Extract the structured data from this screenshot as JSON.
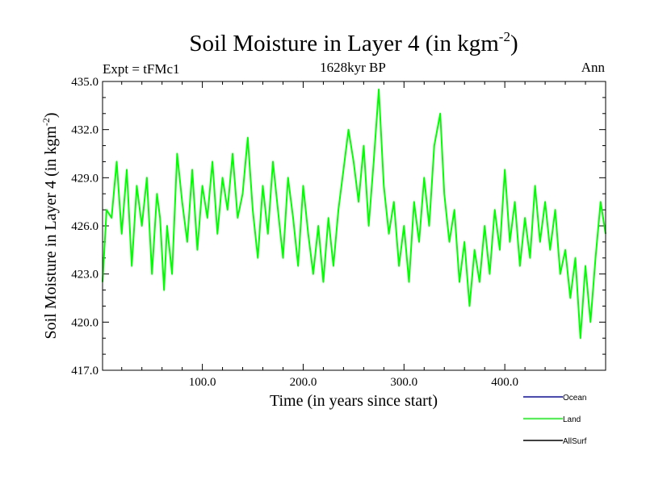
{
  "chart_data": {
    "type": "line",
    "title": "Soil Moisture in Layer 4 (in kgm",
    "title_exponent": "-2",
    "title_close": ")",
    "subtitle": "1628kyr BP",
    "left_label": "Expt = tFMc1",
    "right_label": "Ann",
    "xlabel": "Time (in years since start)",
    "ylabel": "Soil Moisture in Layer 4 (in kgm",
    "ylabel_exponent": "-2",
    "ylabel_close": ")",
    "xlim": [
      1,
      500
    ],
    "ylim": [
      417.0,
      435.0
    ],
    "x_ticks": [
      100,
      200,
      300,
      400
    ],
    "x_tick_labels": [
      "100.0",
      "200.0",
      "300.0",
      "400.0"
    ],
    "y_ticks": [
      417,
      420,
      423,
      426,
      429,
      432,
      435
    ],
    "y_tick_labels": [
      "417.0",
      "420.0",
      "423.0",
      "426.0",
      "429.0",
      "432.0",
      "435.0"
    ],
    "legend": [
      {
        "name": "Ocean",
        "color": "#0000ff"
      },
      {
        "name": "Land",
        "color": "#00ff00"
      },
      {
        "name": "AllSurf",
        "color": "#000000"
      }
    ],
    "series": [
      {
        "name": "Land",
        "color": "#00ff00",
        "x": [
          1,
          5,
          10,
          15,
          20,
          25,
          30,
          35,
          40,
          45,
          50,
          55,
          58,
          62,
          65,
          70,
          75,
          80,
          85,
          90,
          95,
          100,
          105,
          110,
          115,
          120,
          125,
          130,
          135,
          140,
          145,
          150,
          155,
          160,
          165,
          170,
          175,
          180,
          185,
          190,
          195,
          200,
          205,
          210,
          215,
          220,
          225,
          230,
          235,
          240,
          245,
          250,
          255,
          260,
          265,
          270,
          275,
          280,
          285,
          290,
          295,
          300,
          305,
          310,
          315,
          320,
          325,
          330,
          336,
          340,
          345,
          350,
          355,
          360,
          365,
          370,
          375,
          380,
          385,
          390,
          395,
          400,
          405,
          410,
          415,
          420,
          425,
          430,
          435,
          440,
          445,
          450,
          455,
          460,
          465,
          470,
          475,
          480,
          485,
          490,
          495,
          500
        ],
        "values": [
          422.5,
          427.0,
          426.5,
          430.0,
          425.5,
          429.5,
          423.5,
          428.5,
          426.0,
          429.0,
          423.0,
          428.0,
          426.5,
          422.0,
          426.0,
          423.0,
          430.5,
          427.5,
          425.0,
          429.5,
          424.5,
          428.5,
          426.5,
          430.0,
          425.5,
          429.0,
          427.0,
          430.5,
          426.5,
          428.0,
          431.5,
          427.0,
          424.0,
          428.5,
          425.5,
          430.0,
          427.0,
          424.0,
          429.0,
          426.5,
          423.5,
          428.5,
          425.5,
          423.0,
          426.0,
          422.5,
          426.5,
          423.5,
          427.0,
          429.5,
          432.0,
          430.0,
          427.5,
          431.0,
          426.0,
          430.0,
          434.5,
          428.5,
          425.5,
          427.5,
          423.5,
          426.0,
          422.5,
          427.5,
          425.0,
          429.0,
          426.0,
          431.0,
          433.0,
          428.0,
          425.0,
          427.0,
          422.5,
          425.0,
          421.0,
          424.5,
          422.5,
          426.0,
          423.0,
          427.0,
          424.5,
          429.5,
          425.0,
          427.5,
          423.5,
          426.5,
          424.0,
          428.5,
          425.0,
          427.5,
          424.5,
          427.0,
          423.0,
          424.5,
          421.5,
          424.0,
          419.0,
          423.5,
          420.0,
          424.0,
          427.5,
          425.5
        ]
      },
      {
        "name": "Ocean",
        "color": "#0000ff",
        "x": [],
        "values": []
      },
      {
        "name": "AllSurf",
        "color": "#000000",
        "x": [],
        "values": []
      }
    ]
  }
}
